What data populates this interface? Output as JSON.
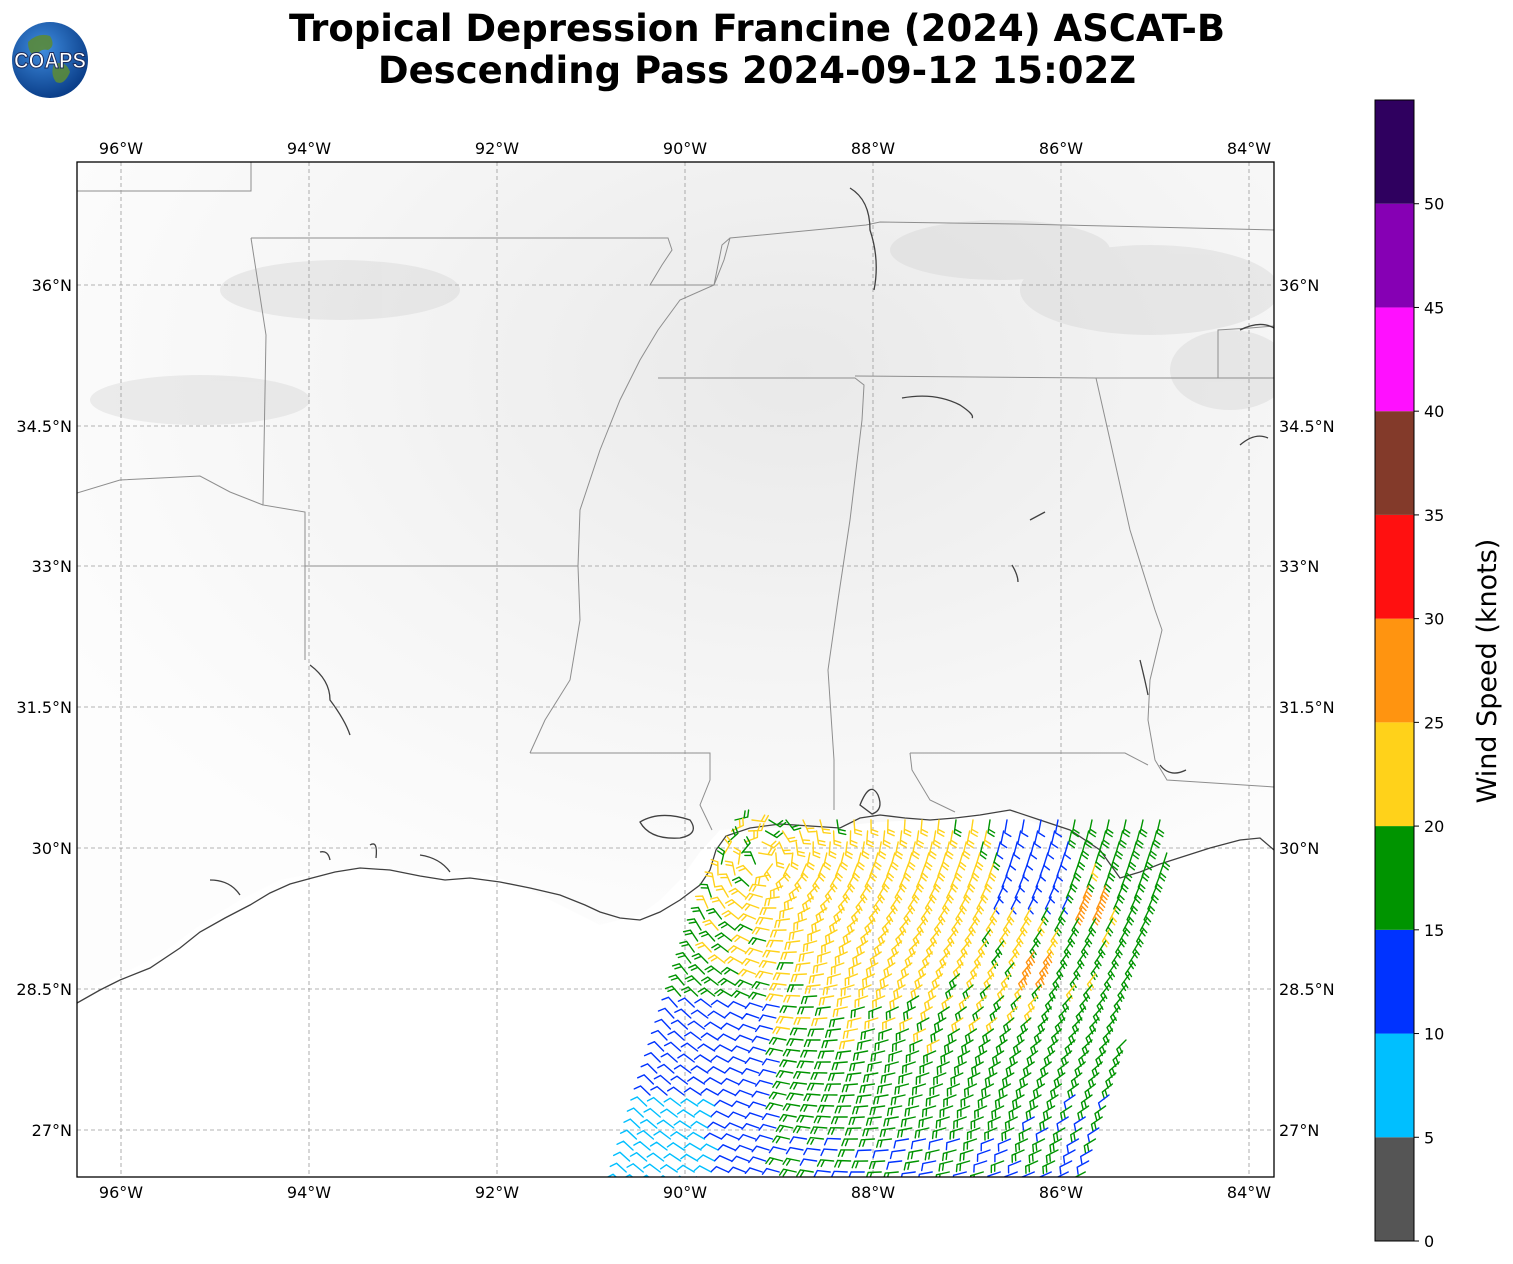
{
  "title": {
    "line1": "Tropical Depression Francine (2024) ASCAT-B",
    "line2": "Descending Pass 2024-09-12 15:02Z"
  },
  "logo": {
    "text": "COAPS",
    "icon": "globe-logo-icon"
  },
  "map": {
    "lon_labels": [
      "96°W",
      "94°W",
      "92°W",
      "90°W",
      "88°W",
      "86°W",
      "84°W"
    ],
    "lat_labels": [
      "36°N",
      "34.5°N",
      "33°N",
      "31.5°N",
      "30°N",
      "28.5°N",
      "27°N"
    ],
    "lon_range": [
      -96.45,
      -83.7
    ],
    "lat_range": [
      26.5,
      37.3
    ],
    "gridlines": true
  },
  "colorbar": {
    "label": "Wind Speed (knots)",
    "ticks": [
      "0",
      "5",
      "10",
      "15",
      "20",
      "25",
      "30",
      "35",
      "40",
      "45",
      "50"
    ],
    "bins": [
      {
        "range": [
          0,
          5
        ],
        "color": "#555555"
      },
      {
        "range": [
          5,
          10
        ],
        "color": "#00bfff"
      },
      {
        "range": [
          10,
          15
        ],
        "color": "#0033ff"
      },
      {
        "range": [
          15,
          20
        ],
        "color": "#009400"
      },
      {
        "range": [
          20,
          25
        ],
        "color": "#ffd21a"
      },
      {
        "range": [
          25,
          30
        ],
        "color": "#ff9410"
      },
      {
        "range": [
          30,
          35
        ],
        "color": "#ff1010"
      },
      {
        "range": [
          35,
          40
        ],
        "color": "#833a2a"
      },
      {
        "range": [
          40,
          45
        ],
        "color": "#ff10ff"
      },
      {
        "range": [
          45,
          50
        ],
        "color": "#8600b4"
      },
      {
        "range": [
          50,
          55
        ],
        "color": "#2f005f"
      }
    ]
  }
}
